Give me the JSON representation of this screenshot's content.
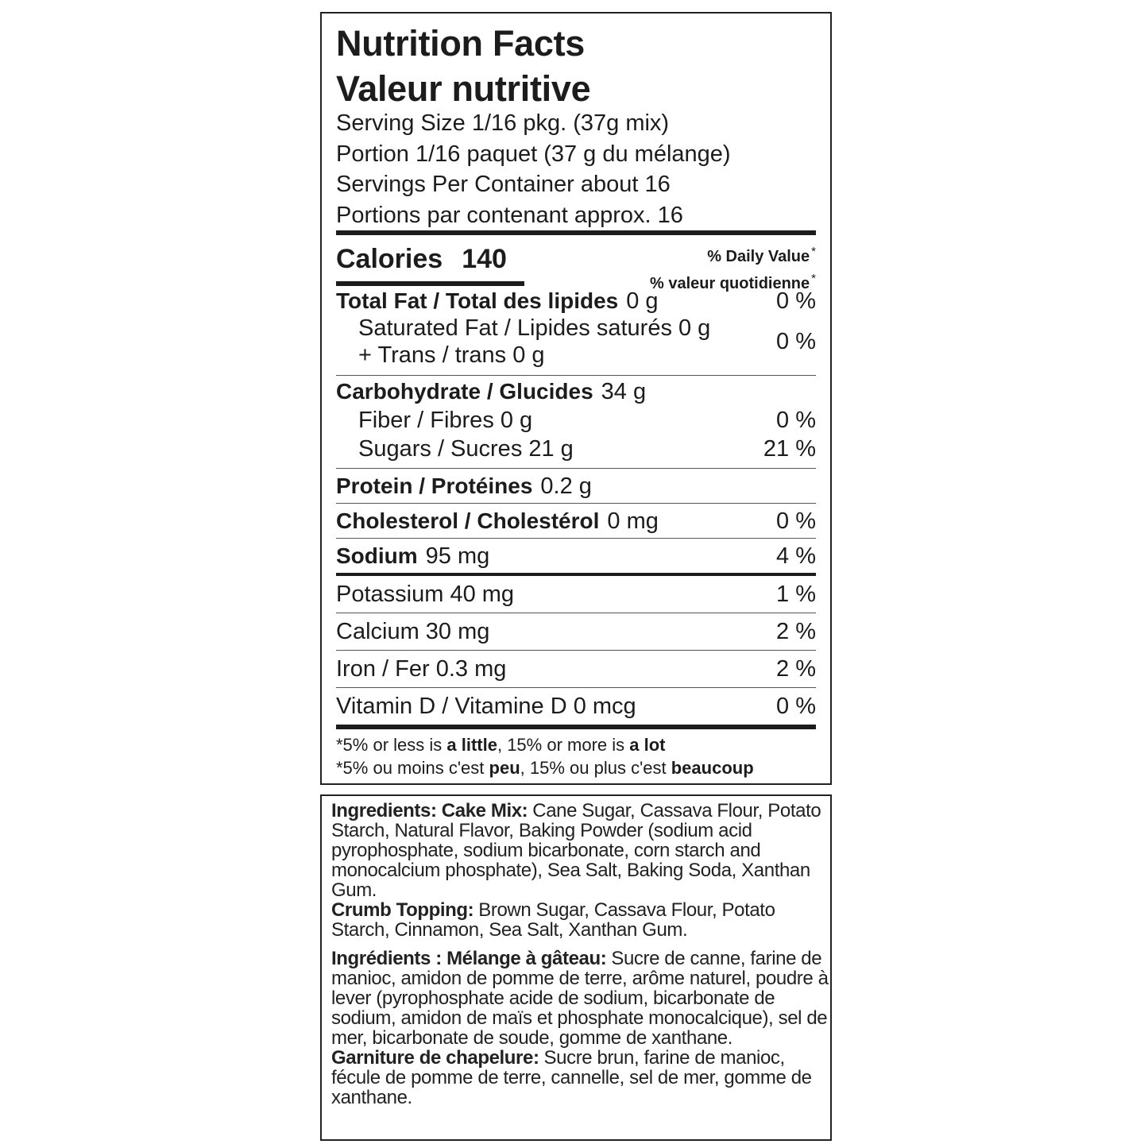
{
  "header": {
    "title_en": "Nutrition Facts",
    "title_fr": "Valeur nutritive",
    "serving": [
      "Serving Size 1/16 pkg. (37g mix)",
      "Portion 1/16 paquet (37 g du mélange)",
      "Servings Per Container about 16",
      "Portions par contenant approx. 16"
    ]
  },
  "calories": {
    "label": "Calories",
    "value": 140
  },
  "daily_value": {
    "en": "% Daily Value",
    "fr": "% valeur quotidienne",
    "mark": "*"
  },
  "sections": [
    {
      "main": {
        "name": "Total Fat / Total des lipides",
        "amount": "0 g",
        "dv": "0 %"
      },
      "sub": [
        {
          "lines": [
            "Saturated Fat / Lipides saturés 0 g",
            "+ Trans / trans 0 g"
          ],
          "dv": "0 %"
        }
      ]
    },
    {
      "main": {
        "name": "Carbohydrate / Glucides",
        "amount": "34 g"
      },
      "sub": [
        {
          "lines": [
            "Fiber / Fibres 0 g"
          ],
          "dv": "0 %"
        },
        {
          "lines": [
            "Sugars / Sucres 21 g"
          ],
          "dv": "21 %"
        }
      ]
    },
    {
      "main": {
        "name": "Protein / Protéines",
        "amount": "0.2 g"
      }
    },
    {
      "main": {
        "name": "Cholesterol / Cholestérol",
        "amount": "0 mg",
        "dv": "0 %"
      }
    },
    {
      "main": {
        "name": "Sodium",
        "amount": "95 mg",
        "dv": "4 %"
      }
    }
  ],
  "minerals": [
    {
      "name": "Potassium 40 mg",
      "dv": "1 %"
    },
    {
      "name": "Calcium 30 mg",
      "dv": "2 %"
    },
    {
      "name": "Iron / Fer 0.3 mg",
      "dv": "2 %"
    },
    {
      "name": "Vitamin D / Vitamine D 0 mcg",
      "dv": "0 %"
    }
  ],
  "footnote": [
    [
      {
        "text": "*5% or less is "
      },
      {
        "text": "a little",
        "bold": true
      },
      {
        "text": ", 15% or more is "
      },
      {
        "text": "a lot",
        "bold": true
      }
    ],
    [
      {
        "text": "*5% ou moins c'est "
      },
      {
        "text": "peu",
        "bold": true
      },
      {
        "text": ", 15% ou plus c'est "
      },
      {
        "text": "beaucoup",
        "bold": true
      }
    ]
  ],
  "ingredients": [
    [
      {
        "text": "Ingredients: Cake Mix:",
        "bold": true
      },
      {
        "text": "Cane Sugar, Cassava Flour, Potato Starch, Natural Flavor, Baking Powder (sodium acid pyrophosphate, sodium bicarbonate, corn starch and monocalcium phosphate), Sea Salt, Baking Soda, Xanthan Gum."
      }
    ],
    [
      {
        "text": "Crumb Topping:",
        "bold": true
      },
      {
        "text": "Brown Sugar, Cassava Flour, Potato Starch, Cinnamon, Sea Salt, Xanthan Gum."
      }
    ],
    [
      {
        "text": "Ingrédients : Mélange à gâteau:",
        "bold": true
      },
      {
        "text": "Sucre de canne, farine de manioc, amidon de pomme de terre, arôme naturel, poudre à lever (pyrophosphate acide de sodium, bicarbonate de sodium, amidon de maïs et phosphate monocalcique), sel de mer, bicarbonate de soude, gomme de xanthane."
      }
    ],
    [
      {
        "text": "Garniture de chapelure:",
        "bold": true
      },
      {
        "text": "Sucre brun, farine de manioc, fécule de pomme de terre, cannelle, sel de mer, gomme de xanthane."
      }
    ]
  ]
}
